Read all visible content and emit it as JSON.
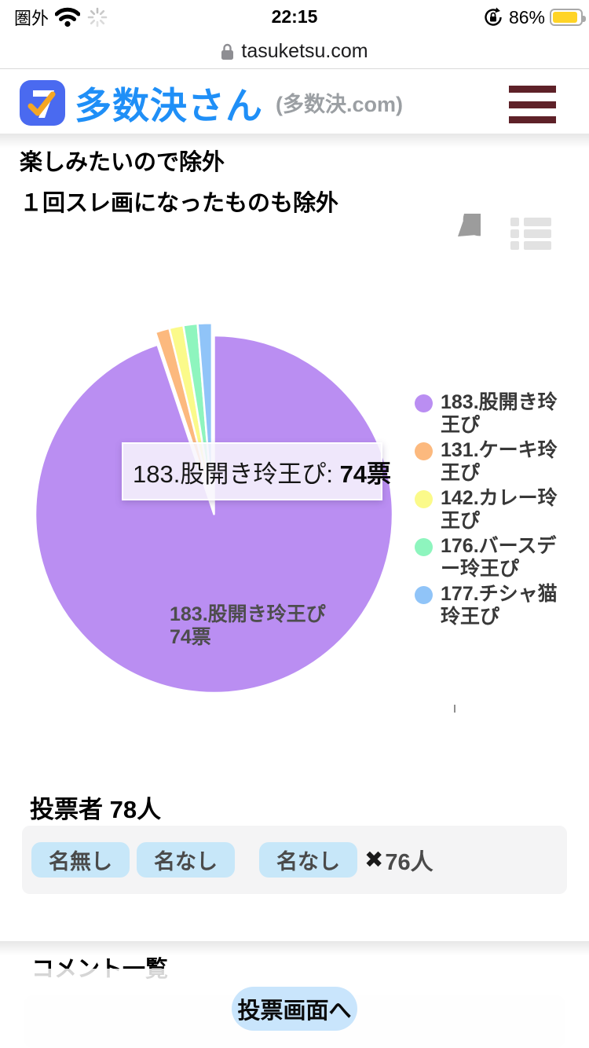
{
  "status_bar": {
    "carrier": "圏外",
    "time": "22:15",
    "battery_percent": "86%"
  },
  "url_bar": {
    "domain": "tasuketsu.com"
  },
  "header": {
    "logo_glyph": "7",
    "logo_text": "多数決さん",
    "logo_sub": "(多数決.com)"
  },
  "poll": {
    "title_line1": "楽しみたいので除外",
    "title_line2": "１回スレ画になったものも除外"
  },
  "chart_data": {
    "type": "pie",
    "title": "楽しみたいので除外 １回スレ画になったものも除外",
    "unit": "票",
    "total_votes": 78,
    "legend_position": "right",
    "series": [
      {
        "label": "183.股開き玲王ぴ",
        "votes": 74,
        "color": "#ba8ef2"
      },
      {
        "label": "131.ケーキ玲王ぴ",
        "votes": 1,
        "color": "#fcb97e"
      },
      {
        "label": "142.カレー玲王ぴ",
        "votes": 1,
        "color": "#fbfa8a"
      },
      {
        "label": "176.バースデー玲王ぴ",
        "votes": 1,
        "color": "#8ef5be"
      },
      {
        "label": "177.チシャ猫玲王ぴ",
        "votes": 1,
        "color": "#90c4f8"
      }
    ]
  },
  "tooltip": {
    "label": "183.股開き玲王ぴ: ",
    "value": "74票"
  },
  "pie_inner_label": {
    "line1": "183.股開き玲王ぴ",
    "line2": "74票"
  },
  "voters": {
    "heading": "投票者 78人",
    "tags": [
      "名無し",
      "名なし",
      "名なし"
    ],
    "times_symbol": "✖",
    "times_count": "76人"
  },
  "comments": {
    "heading": "コメント一覧"
  },
  "bottom_bar": {
    "button_label": "投票画面へ"
  },
  "colors": {
    "accent_blue": "#1f8ff7",
    "hamburger": "#5e2128",
    "tag_bg": "#c7e7f9",
    "button_bg": "#c9e5fc",
    "battery_low_power": "#ffd426"
  }
}
